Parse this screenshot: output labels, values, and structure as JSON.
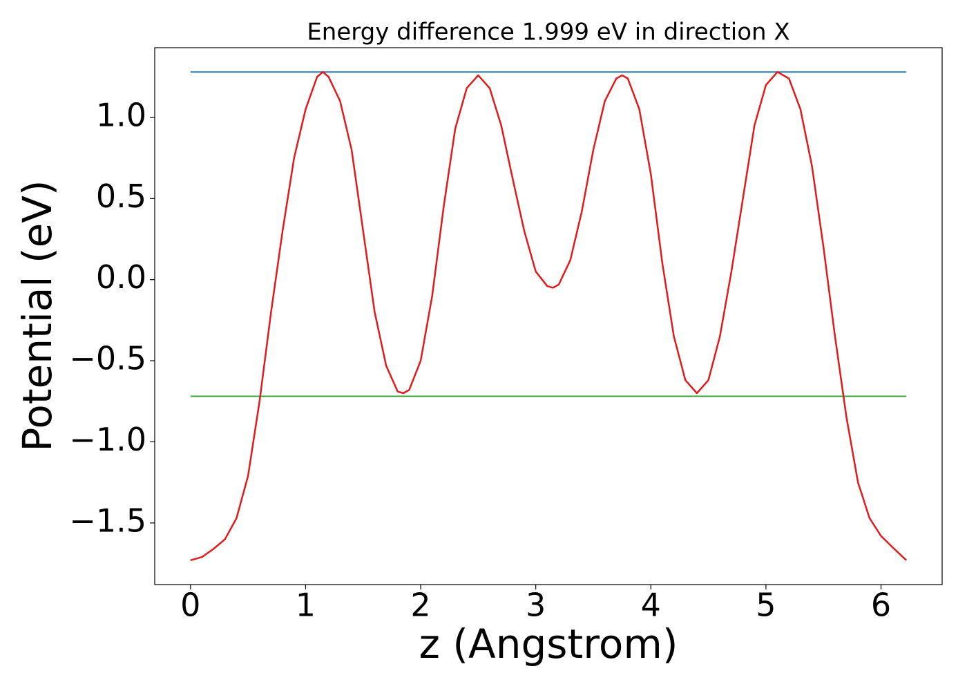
{
  "chart_data": {
    "type": "line",
    "title": "Energy difference 1.999 eV in direction X",
    "xlabel": "z (Angstrom)",
    "ylabel": "Potential (eV)",
    "xlim": [
      -0.311,
      6.531
    ],
    "ylim": [
      -1.88,
      1.43
    ],
    "xticks": [
      0,
      1,
      2,
      3,
      4,
      5,
      6
    ],
    "yticks": [
      {
        "value": -1.5,
        "label": "−1.5"
      },
      {
        "value": -1.0,
        "label": "−1.0"
      },
      {
        "value": -0.5,
        "label": "−0.5"
      },
      {
        "value": 0.0,
        "label": "0.0"
      },
      0.5,
      {
        "value": 1.0,
        "label": "1.0"
      }
    ],
    "series": [
      {
        "color": "#1f77b4",
        "x": [
          0,
          6.22
        ],
        "values": [
          1.28,
          1.28
        ]
      },
      {
        "color": "#2ca02c",
        "x": [
          0,
          6.22
        ],
        "values": [
          -0.719,
          -0.719
        ]
      },
      {
        "color": "#e31a1c",
        "x": [
          0,
          0.1,
          0.2,
          0.3,
          0.4,
          0.5,
          0.6,
          0.7,
          0.8,
          0.9,
          1.0,
          1.1,
          1.15,
          1.2,
          1.3,
          1.4,
          1.5,
          1.6,
          1.7,
          1.8,
          1.85,
          1.9,
          2.0,
          2.1,
          2.2,
          2.3,
          2.4,
          2.5,
          2.6,
          2.7,
          2.8,
          2.9,
          3.0,
          3.1,
          3.15,
          3.2,
          3.3,
          3.4,
          3.5,
          3.6,
          3.7,
          3.75,
          3.8,
          3.9,
          4.0,
          4.1,
          4.2,
          4.3,
          4.4,
          4.5,
          4.6,
          4.7,
          4.8,
          4.9,
          5.0,
          5.1,
          5.2,
          5.3,
          5.4,
          5.5,
          5.6,
          5.7,
          5.8,
          5.9,
          6.0,
          6.1,
          6.22
        ],
        "values": [
          -1.73,
          -1.71,
          -1.66,
          -1.6,
          -1.47,
          -1.21,
          -0.75,
          -0.2,
          0.3,
          0.75,
          1.05,
          1.25,
          1.28,
          1.25,
          1.1,
          0.8,
          0.3,
          -0.2,
          -0.53,
          -0.69,
          -0.7,
          -0.68,
          -0.5,
          -0.1,
          0.45,
          0.93,
          1.18,
          1.26,
          1.18,
          0.95,
          0.62,
          0.3,
          0.05,
          -0.04,
          -0.05,
          -0.03,
          0.12,
          0.42,
          0.8,
          1.1,
          1.24,
          1.26,
          1.24,
          1.05,
          0.65,
          0.1,
          -0.35,
          -0.62,
          -0.7,
          -0.62,
          -0.35,
          0.05,
          0.5,
          0.95,
          1.2,
          1.28,
          1.24,
          1.05,
          0.7,
          0.2,
          -0.35,
          -0.85,
          -1.25,
          -1.47,
          -1.58,
          -1.65,
          -1.73
        ]
      }
    ]
  }
}
